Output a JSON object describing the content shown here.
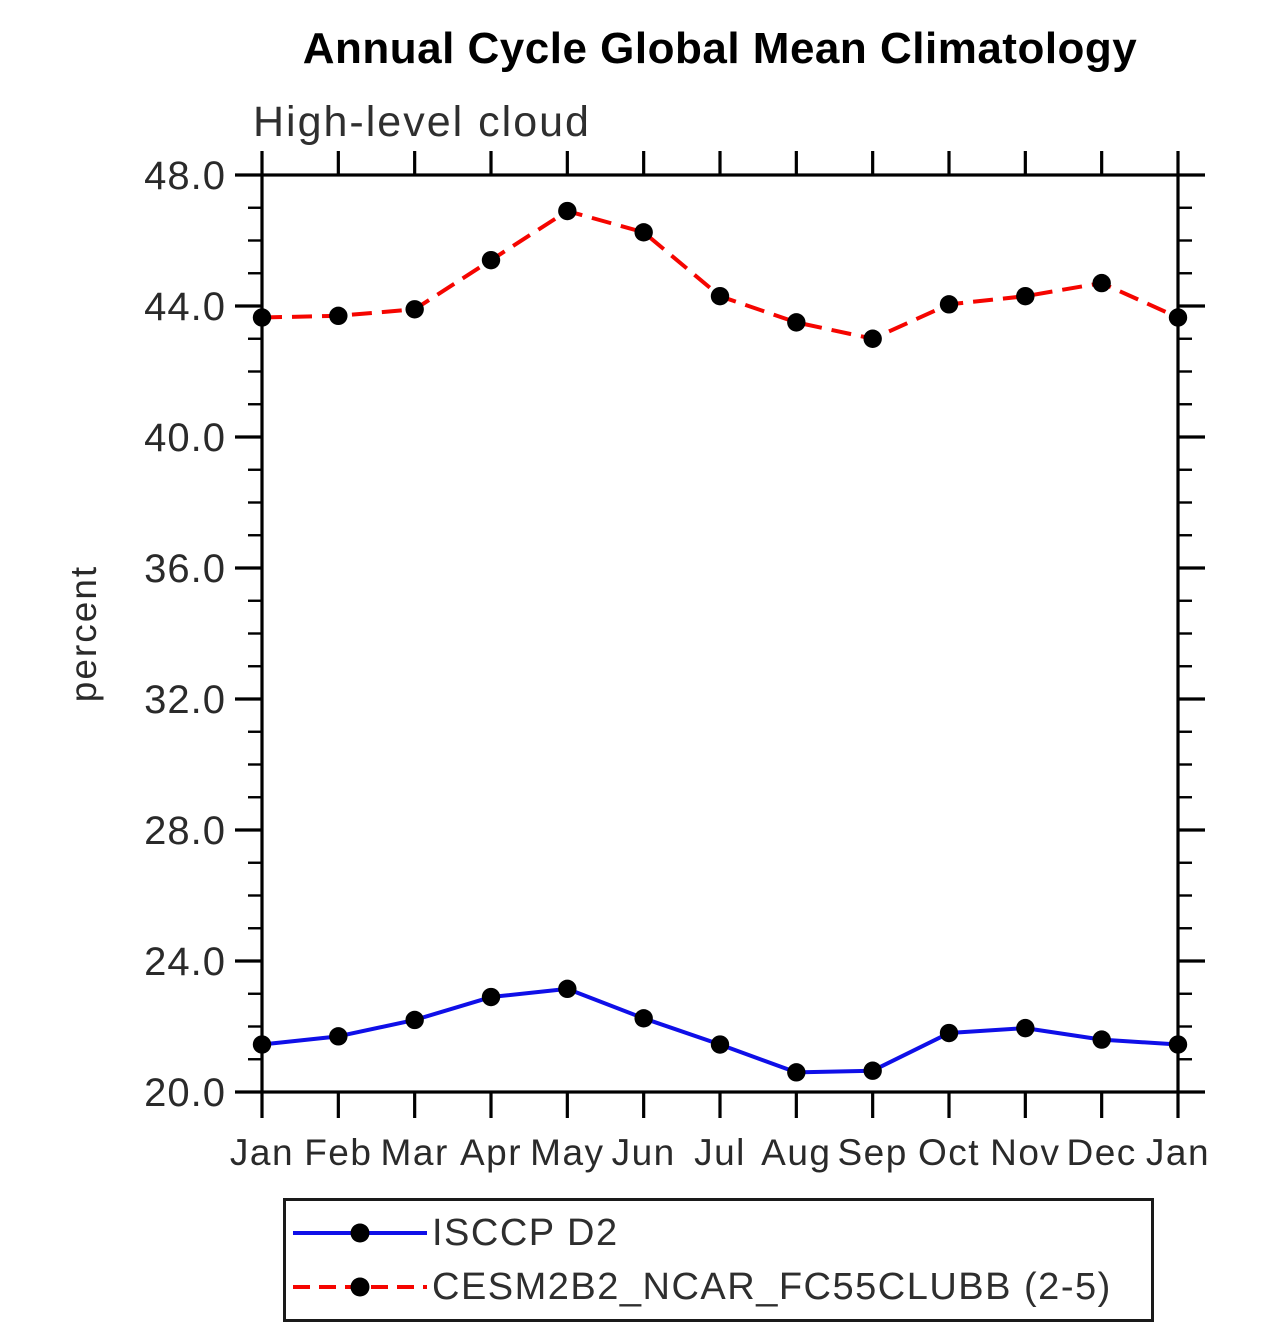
{
  "chart_data": {
    "type": "line",
    "title": "Annual Cycle Global Mean Climatology",
    "subtitle": "High-level cloud",
    "ylabel": "percent",
    "xlabel": "",
    "x_categories": [
      "Jan",
      "Feb",
      "Mar",
      "Apr",
      "May",
      "Jun",
      "Jul",
      "Aug",
      "Sep",
      "Oct",
      "Nov",
      "Dec",
      "Jan"
    ],
    "ylim": [
      20.0,
      48.0
    ],
    "ytick_major": 4.0,
    "ytick_minor": 1.0,
    "ytick_label_format": "one_decimal",
    "grid": false,
    "legend_position": "bottom",
    "marker": "filled-circle",
    "marker_color": "#000000",
    "axis_color": "#000000",
    "series": [
      {
        "name": "ISCCP D2",
        "color": "#0f0fe8",
        "line_style": "solid",
        "values": [
          21.45,
          21.7,
          22.2,
          22.9,
          23.15,
          22.25,
          21.45,
          20.6,
          20.65,
          21.8,
          21.95,
          21.6,
          21.45
        ]
      },
      {
        "name": "CESM2B2_NCAR_FC55CLUBB (2-5)",
        "color": "#f50500",
        "line_style": "dashed",
        "values": [
          43.65,
          43.7,
          43.9,
          45.4,
          46.9,
          46.25,
          44.3,
          43.5,
          43.0,
          44.05,
          44.3,
          44.7,
          43.65
        ]
      }
    ]
  }
}
